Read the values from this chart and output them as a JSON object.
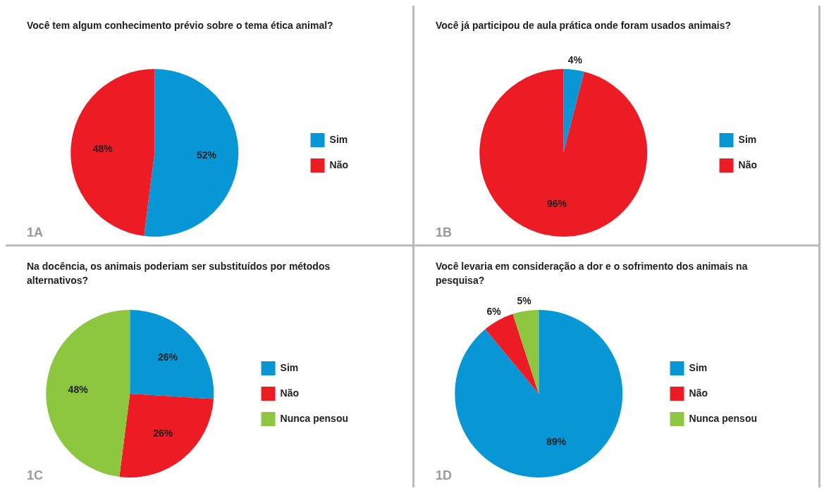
{
  "chart_data": [
    {
      "type": "pie",
      "title": "Você tem algum conhecimento prévio sobre o tema ética animal?",
      "categories": [
        "Sim",
        "Não"
      ],
      "values": [
        52,
        48
      ],
      "colors": [
        "#0796d6",
        "#ed1c24"
      ],
      "value_labels": [
        "52%",
        "48%"
      ],
      "legend": "right",
      "annotations": [
        "1A"
      ]
    },
    {
      "type": "pie",
      "title": "Você já participou de aula prática onde foram usados animais?",
      "categories": [
        "Sim",
        "Não"
      ],
      "values": [
        4,
        96
      ],
      "colors": [
        "#0796d6",
        "#ed1c24"
      ],
      "value_labels": [
        "4%",
        "96%"
      ],
      "legend": "right",
      "annotations": [
        "1B"
      ]
    },
    {
      "type": "pie",
      "title": "Na docência, os animais poderiam ser substituídos por métodos alternativos?",
      "categories": [
        "Sim",
        "Não",
        "Nunca pensou"
      ],
      "values": [
        26,
        26,
        48
      ],
      "colors": [
        "#0796d6",
        "#ed1c24",
        "#8dc63f"
      ],
      "value_labels": [
        "26%",
        "26%",
        "48%"
      ],
      "legend": "right",
      "annotations": [
        "1C"
      ]
    },
    {
      "type": "pie",
      "title": "Você levaria em consideração a dor e o sofrimento dos animais na pesquisa?",
      "categories": [
        "Sim",
        "Não",
        "Nunca pensou"
      ],
      "values": [
        89,
        6,
        5
      ],
      "colors": [
        "#0796d6",
        "#ed1c24",
        "#8dc63f"
      ],
      "value_labels": [
        "89%",
        "6%",
        "5%"
      ],
      "legend": "right",
      "annotations": [
        "1D"
      ]
    }
  ]
}
